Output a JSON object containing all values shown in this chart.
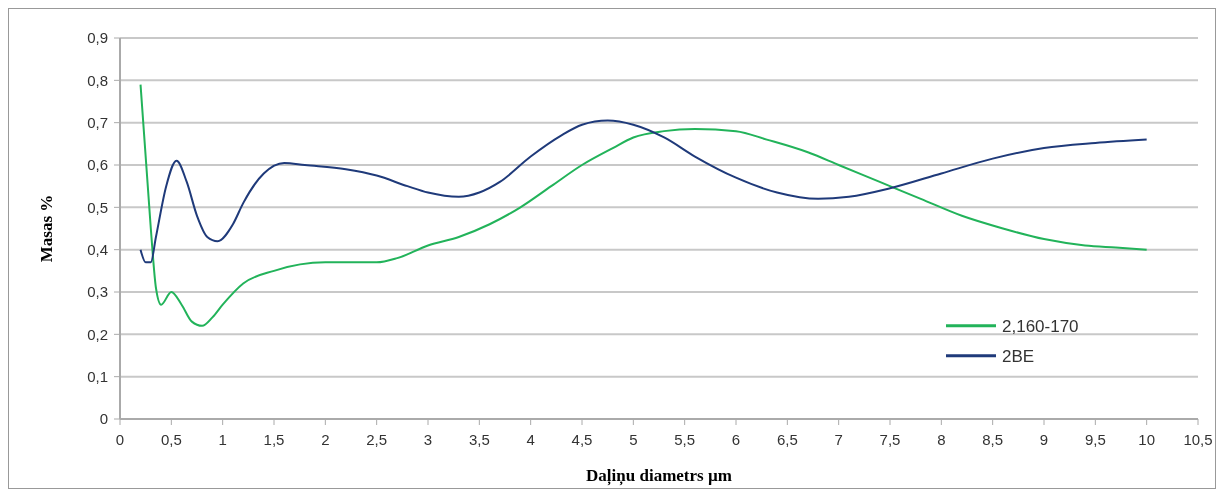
{
  "chart_data": {
    "type": "line",
    "xlabel": "Daļiņu diametrs µm",
    "ylabel": "Masas %",
    "xlim": [
      0,
      10.5
    ],
    "xticks": [
      {
        "value": 0,
        "label": "0"
      },
      {
        "value": 0.5,
        "label": "0,5"
      },
      {
        "value": 1,
        "label": "1"
      },
      {
        "value": 1.5,
        "label": "1,5"
      },
      {
        "value": 2,
        "label": "2"
      },
      {
        "value": 2.5,
        "label": "2,5"
      },
      {
        "value": 3,
        "label": "3"
      },
      {
        "value": 3.5,
        "label": "3,5"
      },
      {
        "value": 4,
        "label": "4"
      },
      {
        "value": 4.5,
        "label": "4,5"
      },
      {
        "value": 5,
        "label": "5"
      },
      {
        "value": 5.5,
        "label": "5,5"
      },
      {
        "value": 6,
        "label": "6"
      },
      {
        "value": 6.5,
        "label": "6,5"
      },
      {
        "value": 7,
        "label": "7"
      },
      {
        "value": 7.5,
        "label": "7,5"
      },
      {
        "value": 8,
        "label": "8"
      },
      {
        "value": 8.5,
        "label": "8,5"
      },
      {
        "value": 9,
        "label": "9"
      },
      {
        "value": 9.5,
        "label": "9,5"
      },
      {
        "value": 10,
        "label": "10"
      },
      {
        "value": 10.5,
        "label": "10,5"
      }
    ],
    "ylim": [
      0,
      0.9
    ],
    "yticks": [
      {
        "value": 0,
        "label": "0"
      },
      {
        "value": 0.1,
        "label": "0,1"
      },
      {
        "value": 0.2,
        "label": "0,2"
      },
      {
        "value": 0.3,
        "label": "0,3"
      },
      {
        "value": 0.4,
        "label": "0,4"
      },
      {
        "value": 0.5,
        "label": "0,5"
      },
      {
        "value": 0.6,
        "label": "0,6"
      },
      {
        "value": 0.7,
        "label": "0,7"
      },
      {
        "value": 0.8,
        "label": "0,8"
      },
      {
        "value": 0.9,
        "label": "0,9"
      }
    ],
    "grid": "y",
    "legend": "right",
    "marker": "none",
    "line_style": "solid",
    "series": [
      {
        "name": "2,160-170",
        "color": "#22b35a",
        "x": [
          0.2,
          0.3,
          0.35,
          0.4,
          0.5,
          0.6,
          0.7,
          0.8,
          0.9,
          1.0,
          1.2,
          1.5,
          2,
          2.5,
          2.7,
          3,
          3.3,
          3.6,
          3.9,
          4.2,
          4.5,
          4.8,
          5,
          5.3,
          5.6,
          6,
          6.3,
          6.7,
          7,
          7.4,
          7.8,
          8.2,
          8.6,
          9,
          9.4,
          9.7,
          10
        ],
        "values": [
          0.79,
          0.45,
          0.31,
          0.27,
          0.3,
          0.27,
          0.23,
          0.22,
          0.24,
          0.27,
          0.32,
          0.35,
          0.37,
          0.37,
          0.38,
          0.41,
          0.43,
          0.46,
          0.5,
          0.55,
          0.6,
          0.64,
          0.665,
          0.68,
          0.685,
          0.68,
          0.66,
          0.63,
          0.6,
          0.56,
          0.52,
          0.48,
          0.45,
          0.425,
          0.41,
          0.405,
          0.4
        ]
      },
      {
        "name": "2BE",
        "color": "#1f3a7a",
        "x": [
          0.2,
          0.25,
          0.3,
          0.35,
          0.45,
          0.55,
          0.65,
          0.75,
          0.85,
          0.95,
          1.1,
          1.2,
          1.4,
          1.6,
          1.8,
          2.2,
          2.5,
          2.8,
          3.0,
          3.3,
          3.5,
          3.7,
          4.0,
          4.3,
          4.5,
          4.75,
          5.0,
          5.3,
          5.6,
          6.0,
          6.4,
          6.8,
          7.1,
          7.5,
          8.0,
          8.5,
          9.0,
          9.5,
          10
        ],
        "values": [
          0.4,
          0.37,
          0.37,
          0.43,
          0.55,
          0.61,
          0.56,
          0.48,
          0.43,
          0.42,
          0.46,
          0.51,
          0.58,
          0.605,
          0.6,
          0.59,
          0.575,
          0.55,
          0.535,
          0.525,
          0.535,
          0.56,
          0.62,
          0.67,
          0.695,
          0.705,
          0.695,
          0.665,
          0.62,
          0.57,
          0.535,
          0.52,
          0.525,
          0.545,
          0.58,
          0.615,
          0.64,
          0.652,
          0.66
        ]
      }
    ]
  }
}
